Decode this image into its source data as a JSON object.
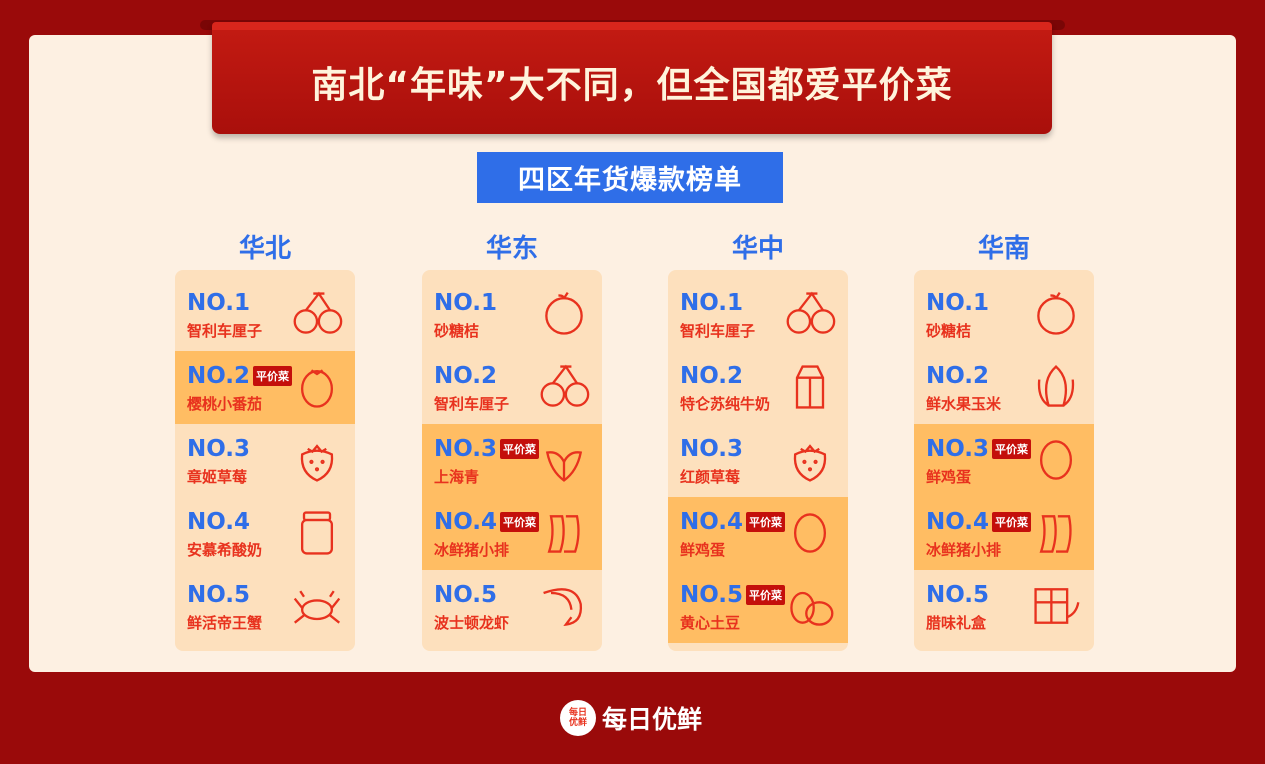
{
  "title": "南北“年味”大不同，但全国都爱平价菜",
  "subtitle": "四区年货爆款榜单",
  "tag_label": "平价菜",
  "brand": {
    "name": "每日优鲜",
    "badge_text": "每日优鲜"
  },
  "colors": {
    "background": "#9a0a0a",
    "accent_blue": "#2f6ee8",
    "highlight": "#ffbd63",
    "text_red": "#e8321e"
  },
  "regions": [
    {
      "name": "华北",
      "items": [
        {
          "rank": "NO.1",
          "name": "智利车厘子",
          "icon": "cherry-icon",
          "tag": false
        },
        {
          "rank": "NO.2",
          "name": "樱桃小番茄",
          "icon": "tomato-icon",
          "tag": true
        },
        {
          "rank": "NO.3",
          "name": "章姬草莓",
          "icon": "strawberry-icon",
          "tag": false
        },
        {
          "rank": "NO.4",
          "name": "安慕希酸奶",
          "icon": "yogurt-jar-icon",
          "tag": false
        },
        {
          "rank": "NO.5",
          "name": "鲜活帝王蟹",
          "icon": "crab-icon",
          "tag": false
        }
      ]
    },
    {
      "name": "华东",
      "items": [
        {
          "rank": "NO.1",
          "name": "砂糖桔",
          "icon": "orange-icon",
          "tag": false
        },
        {
          "rank": "NO.2",
          "name": "智利车厘子",
          "icon": "cherry-icon",
          "tag": false
        },
        {
          "rank": "NO.3",
          "name": "上海青",
          "icon": "bok-choy-icon",
          "tag": true
        },
        {
          "rank": "NO.4",
          "name": "冰鲜猪小排",
          "icon": "ribs-icon",
          "tag": true
        },
        {
          "rank": "NO.5",
          "name": "波士顿龙虾",
          "icon": "shrimp-icon",
          "tag": false
        }
      ]
    },
    {
      "name": "华中",
      "items": [
        {
          "rank": "NO.1",
          "name": "智利车厘子",
          "icon": "cherry-icon",
          "tag": false
        },
        {
          "rank": "NO.2",
          "name": "特仑苏纯牛奶",
          "icon": "milk-carton-icon",
          "tag": false
        },
        {
          "rank": "NO.3",
          "name": "红颜草莓",
          "icon": "strawberry-icon",
          "tag": false
        },
        {
          "rank": "NO.4",
          "name": "鲜鸡蛋",
          "icon": "egg-icon",
          "tag": true
        },
        {
          "rank": "NO.5",
          "name": "黄心土豆",
          "icon": "potato-icon",
          "tag": true
        }
      ]
    },
    {
      "name": "华南",
      "items": [
        {
          "rank": "NO.1",
          "name": "砂糖桔",
          "icon": "orange-icon",
          "tag": false
        },
        {
          "rank": "NO.2",
          "name": "鲜水果玉米",
          "icon": "corn-icon",
          "tag": false
        },
        {
          "rank": "NO.3",
          "name": "鲜鸡蛋",
          "icon": "egg-icon",
          "tag": true
        },
        {
          "rank": "NO.4",
          "name": "冰鲜猪小排",
          "icon": "ribs-icon",
          "tag": true
        },
        {
          "rank": "NO.5",
          "name": "腊味礼盒",
          "icon": "gift-box-icon",
          "tag": false
        }
      ]
    }
  ]
}
